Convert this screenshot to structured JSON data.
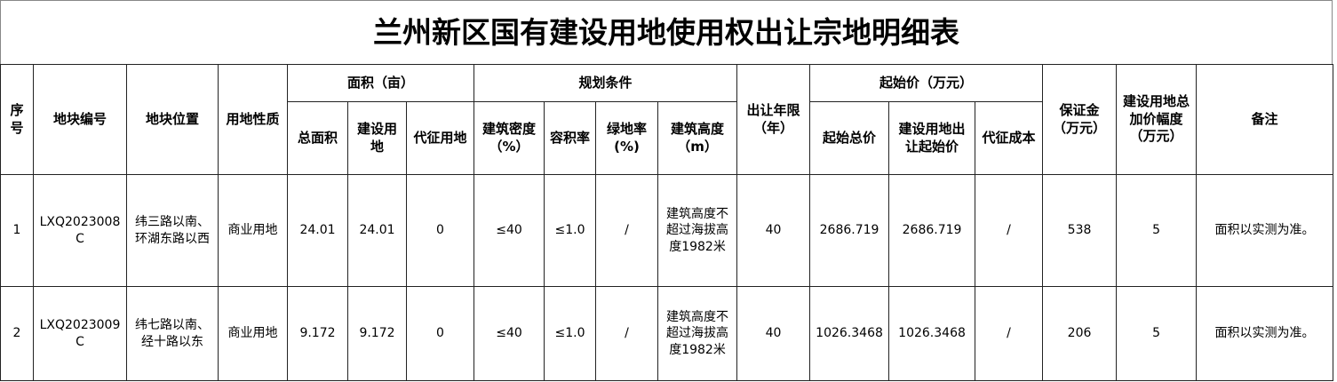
{
  "title": "兰州新区国有建设用地使用权出让宗地明细表",
  "table": {
    "header_top": [
      "序号",
      "地块编号",
      "地块位置",
      "用地性质",
      "面积（亩）",
      "规划条件",
      "出让年限（年）",
      "起始价（万元）",
      "保证金（万元）",
      "建设用地总加价幅度（万元）",
      "备注"
    ],
    "header_sub": [
      "总面积",
      "建设用地",
      "代征用地",
      "建筑密度（%）",
      "容积率",
      "绿地率(%)",
      "建筑高度（m）",
      "起始总价",
      "建设用地出让起始价",
      "代征成本"
    ],
    "rows": [
      [
        "1",
        "LXQ2023008C",
        "纬三路以南、环湖东路以西",
        "商业用地",
        "24.01",
        "24.01",
        "0",
        "≤40",
        "≤1.0",
        "/",
        "建筑高度不超过海拔高度1982米",
        "40",
        "2686.719",
        "2686.719",
        "/",
        "538",
        "5",
        "面积以实测为准。"
      ],
      [
        "2",
        "LXQ2023009C",
        "纬七路以南、经十路以东",
        "商业用地",
        "9.172",
        "9.172",
        "0",
        "≤40",
        "≤1.0",
        "/",
        "建筑高度不超过海拔高度1982米",
        "40",
        "1026.3468",
        "1026.3468",
        "/",
        "206",
        "5",
        "面积以实测为准。"
      ]
    ]
  }
}
